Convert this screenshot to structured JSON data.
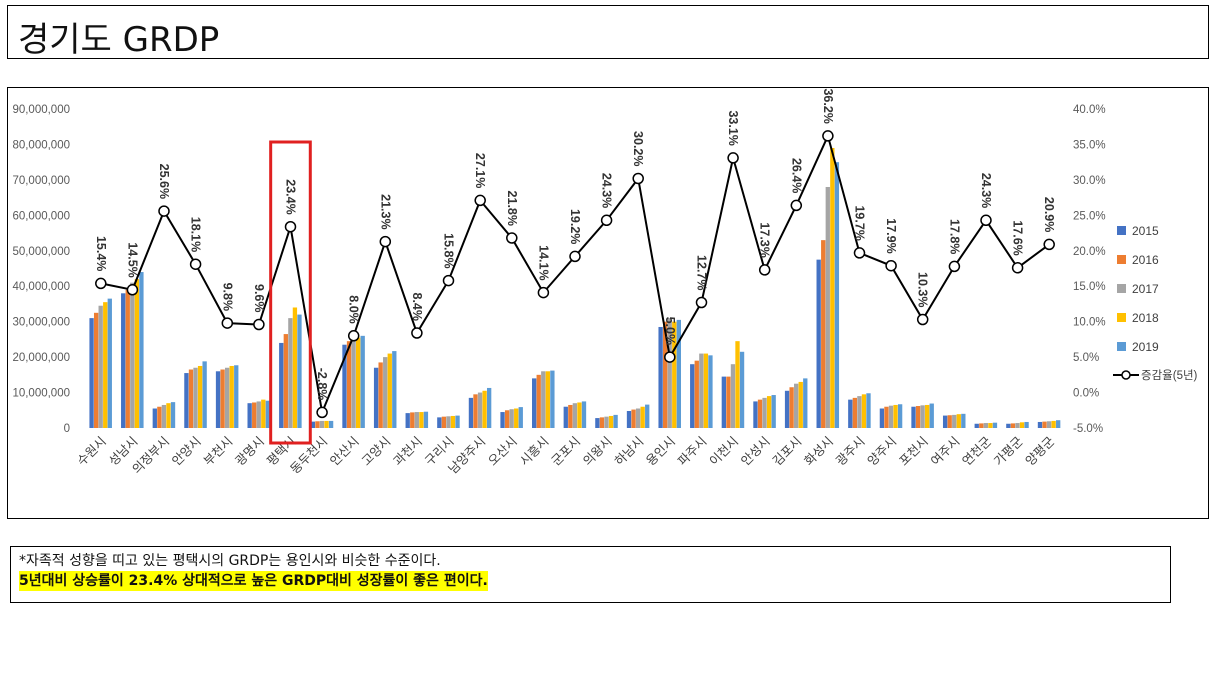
{
  "slide": {
    "title": "경기도 GRDP",
    "note_line1": "*자족적 성향을 띠고 있는 평택시의 GRDP는 용인시와 비슷한 수준이다.",
    "note_line2": "5년대비 상승률이 23.4% 상대적으로 높은 GRDP대비 성장률이 좋은 편이다."
  },
  "chart_data": {
    "type": "bar",
    "title": "",
    "categories": [
      "수원시",
      "성남시",
      "의정부시",
      "안양시",
      "부천시",
      "광명시",
      "평택시",
      "동두천시",
      "안산시",
      "고양시",
      "과천시",
      "구리시",
      "남양주시",
      "오산시",
      "시흥시",
      "군포시",
      "의왕시",
      "하남시",
      "용인시",
      "파주시",
      "이천시",
      "안성시",
      "김포시",
      "화성시",
      "광주시",
      "양주시",
      "포천시",
      "여주시",
      "연천군",
      "가평군",
      "양평군"
    ],
    "series": [
      {
        "name": "2015",
        "color": "#4472c4",
        "values": [
          31000000,
          38000000,
          5500000,
          15500000,
          16000000,
          7000000,
          24000000,
          1800000,
          23500000,
          17000000,
          4200000,
          3000000,
          8500000,
          4500000,
          14000000,
          6000000,
          2800000,
          4800000,
          28500000,
          18000000,
          14500000,
          7500000,
          10500000,
          47500000,
          8000000,
          5500000,
          6000000,
          3500000,
          1200000,
          1200000,
          1700000
        ]
      },
      {
        "name": "2016",
        "color": "#ed7d31",
        "values": [
          32500000,
          39000000,
          6000000,
          16500000,
          16500000,
          7200000,
          26500000,
          1900000,
          24500000,
          18500000,
          4400000,
          3200000,
          9500000,
          5000000,
          15000000,
          6500000,
          3000000,
          5200000,
          30000000,
          19000000,
          14500000,
          8000000,
          11500000,
          53000000,
          8500000,
          6000000,
          6200000,
          3600000,
          1300000,
          1300000,
          1800000
        ]
      },
      {
        "name": "2017",
        "color": "#a5a5a5",
        "values": [
          34500000,
          41000000,
          6500000,
          17000000,
          17000000,
          7500000,
          31000000,
          2000000,
          25000000,
          20000000,
          4500000,
          3300000,
          10000000,
          5300000,
          16000000,
          7000000,
          3200000,
          5500000,
          31000000,
          21000000,
          18000000,
          8500000,
          12500000,
          68000000,
          9000000,
          6300000,
          6400000,
          3700000,
          1400000,
          1400000,
          1900000
        ]
      },
      {
        "name": "2018",
        "color": "#ffc000",
        "values": [
          35500000,
          42000000,
          7000000,
          17500000,
          17500000,
          8000000,
          34000000,
          2000000,
          25500000,
          21000000,
          4500000,
          3400000,
          10500000,
          5500000,
          16000000,
          7200000,
          3400000,
          6000000,
          30000000,
          21000000,
          24500000,
          9000000,
          13000000,
          79000000,
          9500000,
          6500000,
          6500000,
          3900000,
          1400000,
          1600000,
          2000000
        ]
      },
      {
        "name": "2019",
        "color": "#5b9bd5",
        "values": [
          36500000,
          44000000,
          7300000,
          18800000,
          17700000,
          7700000,
          32000000,
          2000000,
          26000000,
          21700000,
          4600000,
          3500000,
          11300000,
          5900000,
          16200000,
          7500000,
          3700000,
          6600000,
          30500000,
          20500000,
          21500000,
          9300000,
          14000000,
          75000000,
          9800000,
          6700000,
          6900000,
          4000000,
          1500000,
          1700000,
          2200000
        ]
      }
    ],
    "line_series": {
      "name": "증감율(5년)",
      "values": [
        15.4,
        14.5,
        25.6,
        18.1,
        9.8,
        9.6,
        23.4,
        -2.8,
        8.0,
        21.3,
        8.4,
        15.8,
        27.1,
        21.8,
        14.1,
        19.2,
        24.3,
        30.2,
        5.0,
        12.7,
        33.1,
        17.3,
        26.4,
        36.2,
        19.7,
        17.9,
        10.3,
        17.8,
        24.3,
        17.6,
        20.9
      ],
      "labels": [
        "15.4%",
        "14.5%",
        "25.6%",
        "18.1%",
        "9.8%",
        "9.6%",
        "23.4%",
        "-2.8%",
        "8.0%",
        "21.3%",
        "8.4%",
        "15.8%",
        "27.1%",
        "21.8%",
        "14.1%",
        "19.2%",
        "24.3%",
        "30.2%",
        "5.0%",
        "12.7%",
        "33.1%",
        "17.3%",
        "26.4%",
        "36.2%",
        "19.7%",
        "17.9%",
        "10.3%",
        "17.8%",
        "24.3%",
        "17.6%",
        "20.9%"
      ]
    },
    "y_left": {
      "ylim": [
        0,
        90000000
      ],
      "ticks": [
        "0",
        "10,000,000",
        "20,000,000",
        "30,000,000",
        "40,000,000",
        "50,000,000",
        "60,000,000",
        "70,000,000",
        "80,000,000",
        "90,000,000"
      ]
    },
    "y_right": {
      "ylim": [
        -5,
        40
      ],
      "ticks": [
        "-5.0%",
        "0.0%",
        "5.0%",
        "10.0%",
        "15.0%",
        "20.0%",
        "25.0%",
        "30.0%",
        "35.0%",
        "40.0%"
      ]
    },
    "legend_position": "right",
    "highlight_category": "평택시",
    "highlight_color": "#e02020",
    "grid": false
  }
}
